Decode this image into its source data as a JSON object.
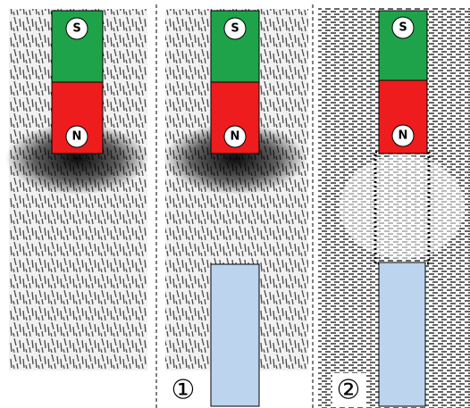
{
  "panels": [
    {
      "magnet": {
        "top": "S",
        "bottom": "N"
      }
    },
    {
      "label": "①",
      "magnet": {
        "top": "S",
        "bottom": "N"
      }
    },
    {
      "label": "②",
      "magnet": {
        "top": "S",
        "bottom": "N"
      }
    }
  ]
}
